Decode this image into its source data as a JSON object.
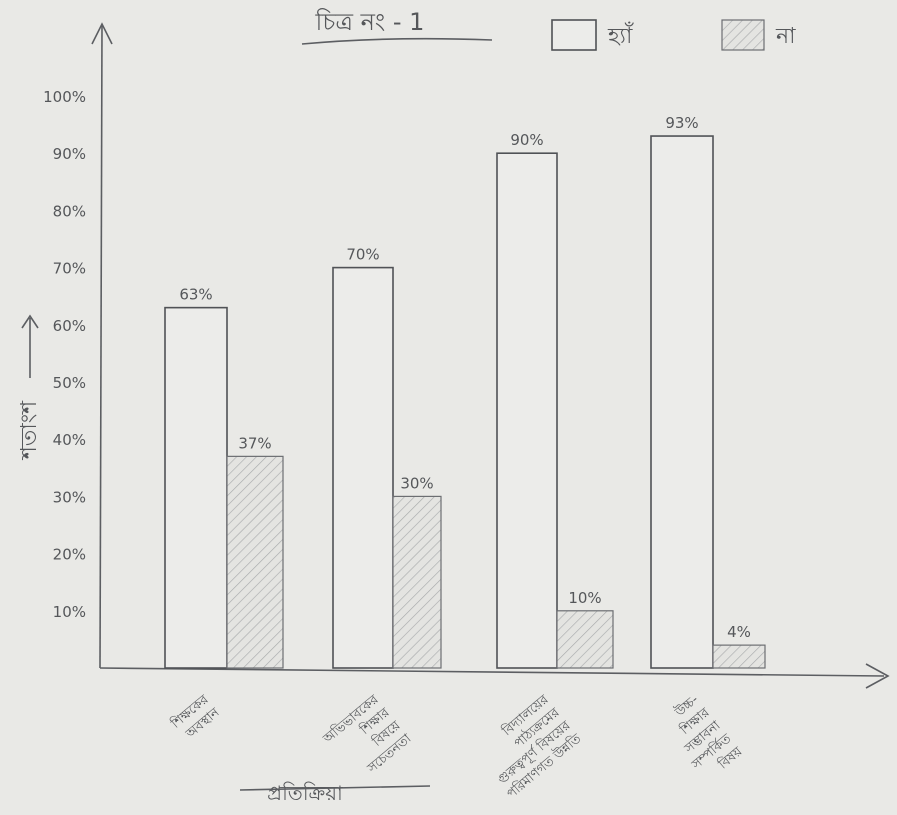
{
  "chart_data": {
    "type": "bar",
    "title": "চিত্র নং - 1",
    "ylabel": "শতাংশ",
    "xlabel": "প্রতিক্রিয়া",
    "ylim": [
      0,
      100
    ],
    "y_ticks": [
      "10%",
      "20%",
      "30%",
      "40%",
      "50%",
      "60%",
      "70%",
      "80%",
      "90%",
      "100%"
    ],
    "categories": [
      [
        "শিক্ষকের",
        "অবস্থান"
      ],
      [
        "অভিভাবকের",
        "শিক্ষার",
        "বিষয়ে",
        "সচেতনতা"
      ],
      [
        "বিদ্যালয়ের",
        "পাঠ্যক্রমের",
        "গুরুত্বপূর্ণ বিষয়ের",
        "পরিমাণগত উন্নতি"
      ],
      [
        "উচ্চ-",
        "শিক্ষার",
        "সম্ভাবনা",
        "সম্পর্কিত",
        "বিষয়"
      ]
    ],
    "series": [
      {
        "name": "হ্যাঁ",
        "values": [
          63,
          70,
          90,
          93
        ],
        "labels": [
          "63%",
          "70%",
          "90%",
          "93%"
        ]
      },
      {
        "name": "না",
        "values": [
          37,
          30,
          10,
          4
        ],
        "labels": [
          "37%",
          "30%",
          "10%",
          "4%"
        ]
      }
    ],
    "legend": "top-right",
    "grid": false
  }
}
